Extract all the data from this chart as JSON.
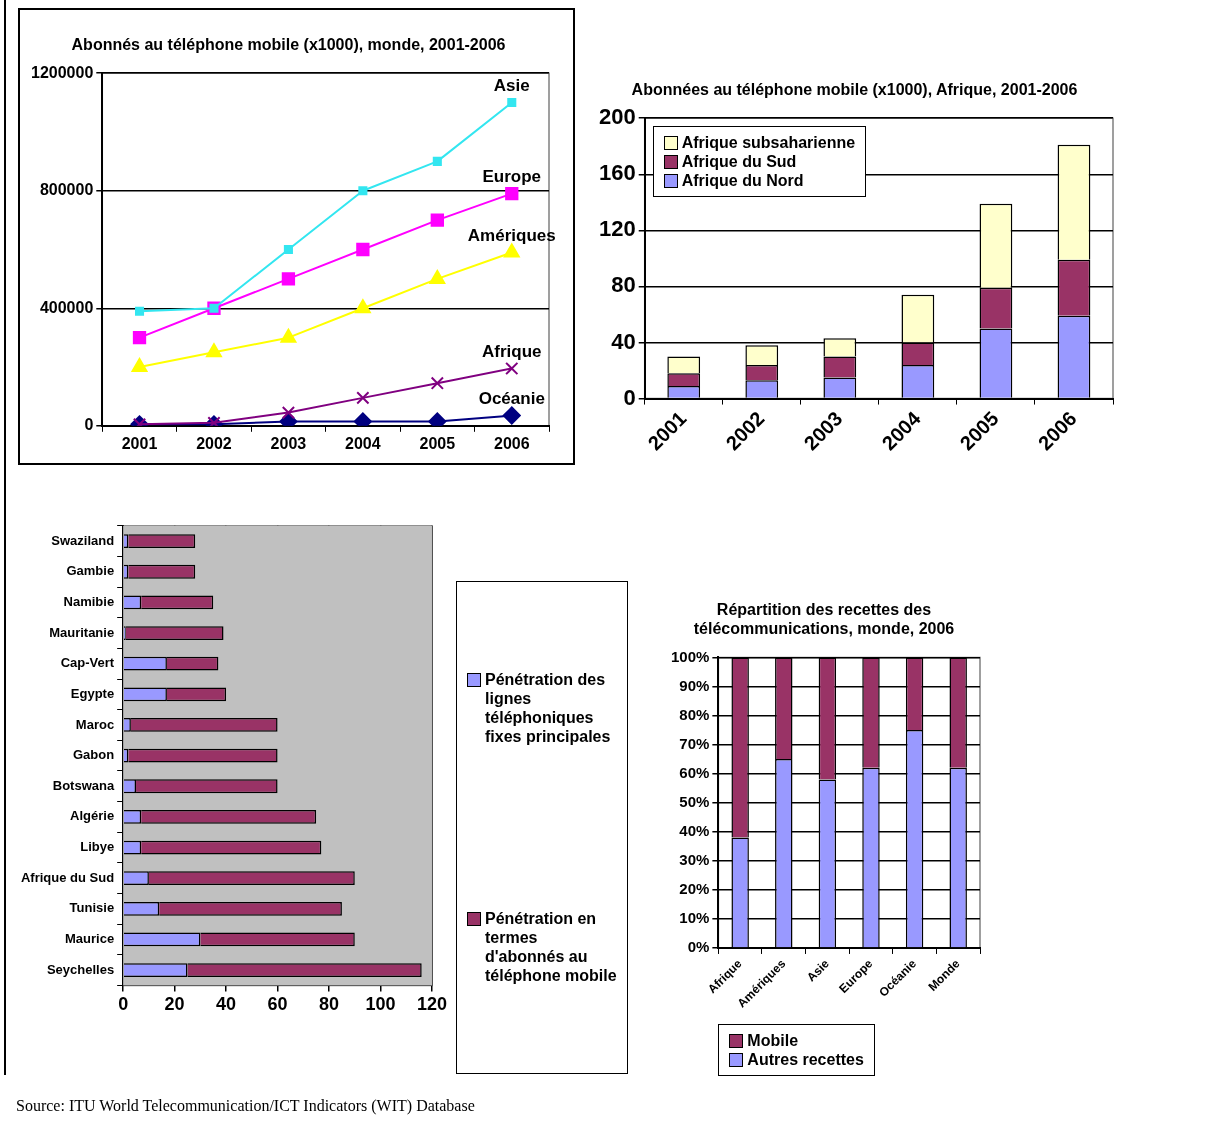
{
  "chart_data": [
    {
      "type": "line",
      "title": "Abonnés au téléphone mobile (x1000), monde, 2001-2006",
      "categories": [
        "2001",
        "2002",
        "2003",
        "2004",
        "2005",
        "2006"
      ],
      "ylim": [
        0,
        1200000
      ],
      "yticks": [
        0,
        400000,
        800000,
        1200000
      ],
      "grid": "y",
      "series": [
        {
          "name": "Asie",
          "color": "#33e6f0",
          "marker": "square",
          "values": [
            390000,
            400000,
            600000,
            800000,
            900000,
            1100000
          ]
        },
        {
          "name": "Europe",
          "color": "#ff00ff",
          "marker": "square",
          "values": [
            300000,
            400000,
            500000,
            600000,
            700000,
            790000
          ]
        },
        {
          "name": "Amériques",
          "color": "#ffff00",
          "marker": "triangle",
          "values": [
            200000,
            250000,
            300000,
            400000,
            500000,
            590000
          ]
        },
        {
          "name": "Afrique",
          "color": "#800080",
          "marker": "cross",
          "values": [
            5000,
            10000,
            45000,
            95000,
            145000,
            195000
          ]
        },
        {
          "name": "Océanie",
          "color": "#000080",
          "marker": "diamond",
          "values": [
            5000,
            5000,
            15000,
            15000,
            15000,
            35000
          ]
        }
      ]
    },
    {
      "type": "bar",
      "stacked": true,
      "title": "Abonnées au téléphone mobile (x1000), Afrique, 2001-2006",
      "categories": [
        "2001",
        "2002",
        "2003",
        "2004",
        "2005",
        "2006"
      ],
      "ylim": [
        0,
        200
      ],
      "yticks": [
        0,
        40,
        80,
        120,
        160,
        200
      ],
      "grid": "y",
      "legend": "top left",
      "series": [
        {
          "name": "Afrique du Nord",
          "color": "#9999ff",
          "values": [
            9,
            13,
            15,
            24,
            50,
            59
          ]
        },
        {
          "name": "Afrique du Sud",
          "color": "#993366",
          "values": [
            9,
            11,
            15,
            16,
            29,
            40
          ]
        },
        {
          "name": "Afrique subsaharienne",
          "color": "#ffffcc",
          "values": [
            12,
            14,
            13,
            34,
            60,
            82
          ]
        }
      ]
    },
    {
      "type": "bar",
      "stacked": true,
      "orientation": "horizontal",
      "categories": [
        "Swaziland",
        "Gambie",
        "Namibie",
        "Mauritanie",
        "Cap-Vert",
        "Egypte",
        "Maroc",
        "Gabon",
        "Botswana",
        "Algérie",
        "Libye",
        "Afrique du Sud",
        "Tunisie",
        "Maurice",
        "Seychelles"
      ],
      "xlim": [
        0,
        120
      ],
      "xticks": [
        0,
        20,
        40,
        60,
        80,
        100,
        120
      ],
      "grid": "x",
      "legend": "right",
      "series": [
        {
          "name": "Pénétration des lignes téléphoniques fixes principales",
          "color": "#9999ff",
          "values": [
            2,
            2,
            7,
            1,
            17,
            17,
            3,
            2,
            5,
            7,
            7,
            10,
            14,
            30,
            25
          ]
        },
        {
          "name": "Pénétration en termes d'abonnés au téléphone mobile",
          "color": "#993366",
          "values": [
            26,
            26,
            28,
            38,
            20,
            23,
            57,
            58,
            55,
            68,
            70,
            80,
            71,
            60,
            91
          ]
        }
      ],
      "annotations": [
        "Source: ITU World Telecommunication/ICT Indicators (WIT) Database"
      ]
    },
    {
      "type": "bar",
      "stacked": true,
      "title": "Répartition des recettes des télécommunications, monde, 2006",
      "categories": [
        "Afrique",
        "Amériques",
        "Asie",
        "Europe",
        "Océanie",
        "Monde"
      ],
      "ylim": [
        0,
        100
      ],
      "yticks": [
        {
          "value": 0,
          "label": "0%"
        },
        {
          "value": 10,
          "label": "10%"
        },
        {
          "value": 20,
          "label": "20%"
        },
        {
          "value": 30,
          "label": "30%"
        },
        {
          "value": 40,
          "label": "40%"
        },
        {
          "value": 50,
          "label": "50%"
        },
        {
          "value": 60,
          "label": "60%"
        },
        {
          "value": 70,
          "label": "70%"
        },
        {
          "value": 80,
          "label": "80%"
        },
        {
          "value": 90,
          "label": "90%"
        },
        {
          "value": 100,
          "label": "100%"
        }
      ],
      "grid": "y",
      "legend": "bottom",
      "series": [
        {
          "name": "Autres recettes",
          "color": "#9999ff",
          "values": [
            38,
            65,
            58,
            62,
            75,
            62
          ]
        },
        {
          "name": "Mobile",
          "color": "#993366",
          "values": [
            62,
            35,
            42,
            38,
            25,
            38
          ]
        }
      ]
    }
  ]
}
